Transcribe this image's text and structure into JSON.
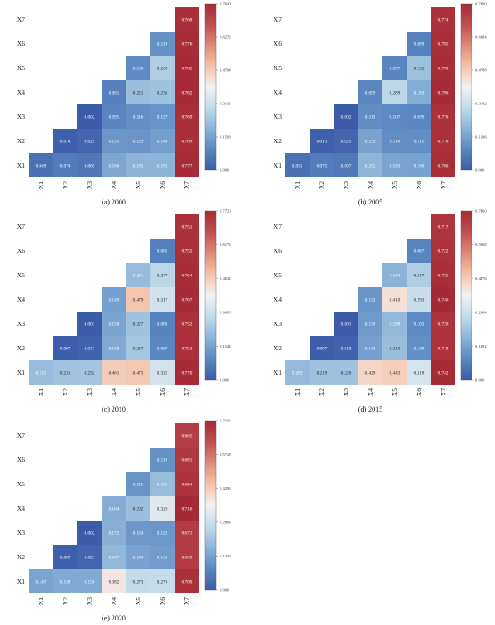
{
  "chart_data": [
    {
      "type": "heatmap",
      "caption": "(a) 2000",
      "x_labels": [
        "X1",
        "X2",
        "X3",
        "X4",
        "X5",
        "X6",
        "X7"
      ],
      "y_labels": [
        "X7",
        "X6",
        "X5",
        "X4",
        "X3",
        "X2",
        "X1"
      ],
      "rows": {
        "X7": [
          null,
          null,
          null,
          null,
          null,
          null,
          "0.768"
        ],
        "X6": [
          null,
          null,
          null,
          null,
          null,
          "0.119",
          "0.776"
        ],
        "X5": [
          null,
          null,
          null,
          null,
          "0.106",
          "0.260",
          "0.782"
        ],
        "X4": [
          null,
          null,
          null,
          "0.081",
          "0.221",
          "0.231",
          "0.782"
        ],
        "X3": [
          null,
          null,
          "0.002",
          "0.095",
          "0.116",
          "0.127",
          "0.769"
        ],
        "X2": [
          null,
          "0.014",
          "0.025",
          "0.131",
          "0.129",
          "0.148",
          "0.769"
        ],
        "X1": [
          "0.049",
          "0.074",
          "0.065",
          "0.166",
          "0.195",
          "0.195",
          "0.777"
        ]
      },
      "colorbar": {
        "ticks": [
          "0.7840",
          "0.6272",
          "0.4704",
          "0.3136",
          "0.1568",
          "0.000"
        ],
        "max": 0.784
      }
    },
    {
      "type": "heatmap",
      "caption": "(b) 2005",
      "x_labels": [
        "X1",
        "X2",
        "X3",
        "X4",
        "X5",
        "X6",
        "X7"
      ],
      "y_labels": [
        "X7",
        "X6",
        "X5",
        "X4",
        "X3",
        "X2",
        "X1"
      ],
      "rows": {
        "X7": [
          null,
          null,
          null,
          null,
          null,
          null,
          "0.774"
        ],
        "X6": [
          null,
          null,
          null,
          null,
          null,
          "0.089",
          "0.785"
        ],
        "X5": [
          null,
          null,
          null,
          null,
          "0.097",
          "0.232",
          "0.790"
        ],
        "X4": [
          null,
          null,
          null,
          "0.099",
          "0.289",
          "0.183",
          "0.796"
        ],
        "X3": [
          null,
          null,
          "0.002",
          "0.113",
          "0.107",
          "0.099",
          "0.776"
        ],
        "X2": [
          null,
          "0.013",
          "0.025",
          "0.159",
          "0.116",
          "0.115",
          "0.776"
        ],
        "X1": [
          "0.051",
          "0.075",
          "0.067",
          "0.202",
          "0.163",
          "0.160",
          "0.786"
        ]
      },
      "colorbar": {
        "ticks": [
          "0.7980",
          "0.6384",
          "0.4788",
          "0.3192",
          "0.1596",
          "0.000"
        ],
        "max": 0.798
      }
    },
    {
      "type": "heatmap",
      "caption": "(c) 2010",
      "x_labels": [
        "X1",
        "X2",
        "X3",
        "X4",
        "X5",
        "X6",
        "X7"
      ],
      "y_labels": [
        "X7",
        "X6",
        "X5",
        "X4",
        "X3",
        "X2",
        "X1"
      ],
      "rows": {
        "X7": [
          null,
          null,
          null,
          null,
          null,
          null,
          "0.751"
        ],
        "X6": [
          null,
          null,
          null,
          null,
          null,
          "0.081",
          "0.755"
        ],
        "X5": [
          null,
          null,
          null,
          null,
          "0.211",
          "0.277",
          "0.764"
        ],
        "X4": [
          null,
          null,
          null,
          "0.149",
          "0.479",
          "0.317",
          "0.767"
        ],
        "X3": [
          null,
          null,
          "0.001",
          "0.158",
          "0.227",
          "0.088",
          "0.752"
        ],
        "X2": [
          null,
          "0.007",
          "0.017",
          "0.168",
          "0.237",
          "0.097",
          "0.753"
        ],
        "X1": [
          "0.215",
          "0.231",
          "0.232",
          "0.461",
          "0.473",
          "0.321",
          "0.770"
        ]
      },
      "colorbar": {
        "ticks": [
          "0.7720",
          "0.6176",
          "0.4632",
          "0.3088",
          "0.1544",
          "0.000"
        ],
        "max": 0.772
      }
    },
    {
      "type": "heatmap",
      "caption": "(d) 2015",
      "x_labels": [
        "X1",
        "X2",
        "X3",
        "X4",
        "X5",
        "X6",
        "X7"
      ],
      "y_labels": [
        "X7",
        "X6",
        "X5",
        "X4",
        "X3",
        "X2",
        "X1"
      ],
      "rows": {
        "X7": [
          null,
          null,
          null,
          null,
          null,
          null,
          "0.717"
        ],
        "X6": [
          null,
          null,
          null,
          null,
          null,
          "0.087",
          "0.722"
        ],
        "X5": [
          null,
          null,
          null,
          null,
          "0.184",
          "0.247",
          "0.735"
        ],
        "X4": [
          null,
          null,
          null,
          "0.123",
          "0.410",
          "0.293",
          "0.746"
        ],
        "X3": [
          null,
          null,
          "0.001",
          "0.130",
          "0.198",
          "0.102",
          "0.720"
        ],
        "X2": [
          null,
          "0.007",
          "0.018",
          "0.143",
          "0.210",
          "0.109",
          "0.719"
        ],
        "X1": [
          "0.202",
          "0.219",
          "0.220",
          "0.429",
          "0.443",
          "0.318",
          "0.742"
        ]
      },
      "colorbar": {
        "ticks": [
          "0.7460",
          "0.5968",
          "0.4476",
          "0.2984",
          "0.1492",
          "0.000"
        ],
        "max": 0.746
      }
    },
    {
      "type": "heatmap",
      "caption": "(e) 2020",
      "x_labels": [
        "X1",
        "X2",
        "X3",
        "X4",
        "X5",
        "X6",
        "X7"
      ],
      "y_labels": [
        "X7",
        "X6",
        "X5",
        "X4",
        "X3",
        "X2",
        "X1"
      ],
      "rows": {
        "X7": [
          null,
          null,
          null,
          null,
          null,
          null,
          "0.665"
        ],
        "X6": [
          null,
          null,
          null,
          null,
          null,
          "0.110",
          "0.681"
        ],
        "X5": [
          null,
          null,
          null,
          null,
          "0.115",
          "0.196",
          "0.694"
        ],
        "X4": [
          null,
          null,
          null,
          "0.164",
          "0.202",
          "0.320",
          "0.716"
        ],
        "X3": [
          null,
          null,
          "0.002",
          "0.172",
          "0.124",
          "0.122",
          "0.671"
        ],
        "X2": [
          null,
          "0.009",
          "0.021",
          "0.187",
          "0.144",
          "0.131",
          "0.669"
        ],
        "X1": [
          "0.147",
          "0.158",
          "0.158",
          "0.382",
          "0.273",
          "0.276",
          "0.700"
        ]
      },
      "colorbar": {
        "ticks": [
          "0.7160",
          "0.5728",
          "0.4296",
          "0.2864",
          "0.1432",
          "0.000"
        ],
        "max": 0.716
      }
    }
  ],
  "colormap": [
    "#3b5ba8",
    "#5a87c2",
    "#8cb4d8",
    "#c2dbe9",
    "#f2f2f2",
    "#f4c3aa",
    "#e08a76",
    "#c04d52",
    "#a52a35"
  ]
}
